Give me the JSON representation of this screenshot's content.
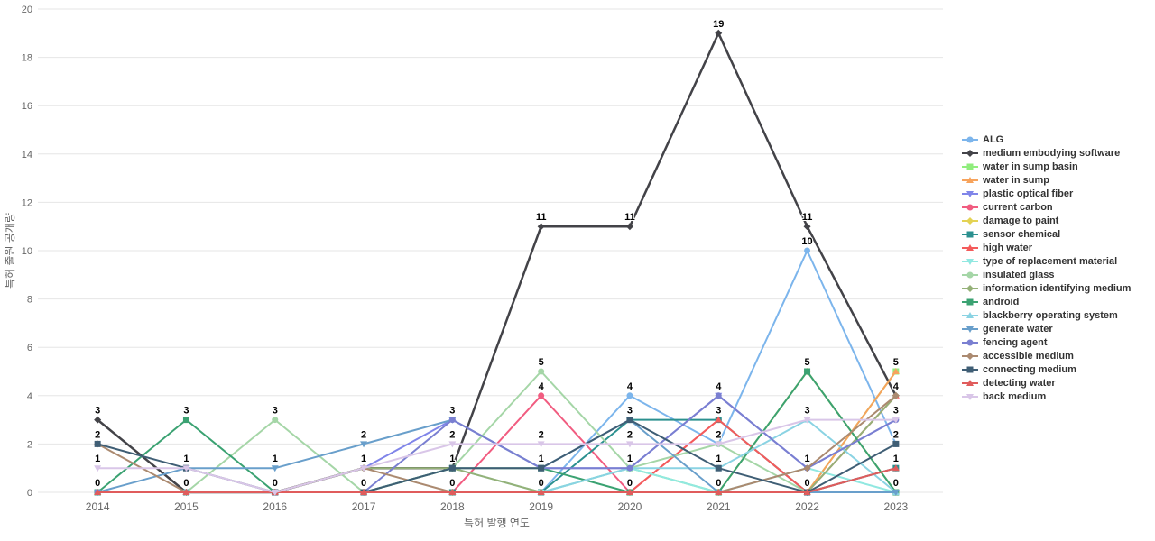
{
  "chart_data": {
    "type": "line",
    "title": "",
    "xlabel": "특허 발행 연도",
    "ylabel": "특허 출원 공개량",
    "x": [
      2014,
      2015,
      2016,
      2017,
      2018,
      2019,
      2020,
      2021,
      2022,
      2023
    ],
    "ylim": [
      0,
      20
    ],
    "ytick_step": 2,
    "grid": true,
    "legend_position": "right",
    "data_labels": true,
    "series": [
      {
        "name": "ALG",
        "slug": "alg",
        "color": "#7cb5ec",
        "marker": "circle",
        "values": [
          0,
          0,
          0,
          0,
          0,
          0,
          4,
          2,
          10,
          2
        ]
      },
      {
        "name": "medium embodying software",
        "slug": "medium-embodying-software",
        "color": "#434348",
        "marker": "diamond",
        "values": [
          3,
          0,
          0,
          1,
          1,
          11,
          11,
          19,
          11,
          4
        ]
      },
      {
        "name": "water in sump basin",
        "slug": "water-in-sump-basin",
        "color": "#90ed7d",
        "marker": "square",
        "values": [
          0,
          0,
          0,
          0,
          0,
          0,
          1,
          0,
          0,
          5
        ]
      },
      {
        "name": "water in sump",
        "slug": "water-in-sump",
        "color": "#f7a35c",
        "marker": "triangle",
        "values": [
          0,
          0,
          0,
          0,
          0,
          0,
          0,
          0,
          0,
          5
        ]
      },
      {
        "name": "plastic optical fiber",
        "slug": "plastic-optical-fiber",
        "color": "#8085e9",
        "marker": "triangle-down",
        "values": [
          0,
          0,
          0,
          1,
          3,
          1,
          1,
          4,
          1,
          3
        ]
      },
      {
        "name": "current carbon",
        "slug": "current-carbon",
        "color": "#f15c80",
        "marker": "circle",
        "values": [
          0,
          0,
          0,
          0,
          0,
          4,
          0,
          3,
          0,
          1
        ]
      },
      {
        "name": "damage to paint",
        "slug": "damage-to-paint",
        "color": "#e4d354",
        "marker": "diamond",
        "values": [
          0,
          0,
          0,
          0,
          0,
          0,
          0,
          0,
          5,
          0
        ]
      },
      {
        "name": "sensor chemical",
        "slug": "sensor-chemical",
        "color": "#2b908f",
        "marker": "square",
        "values": [
          0,
          0,
          0,
          0,
          0,
          0,
          3,
          3,
          0,
          1
        ]
      },
      {
        "name": "high water",
        "slug": "high-water",
        "color": "#f45b5b",
        "marker": "triangle",
        "values": [
          0,
          0,
          0,
          0,
          0,
          0,
          0,
          3,
          0,
          4
        ]
      },
      {
        "name": "type of replacement material",
        "slug": "type-of-replacement-material",
        "color": "#91e8e1",
        "marker": "triangle-down",
        "values": [
          0,
          0,
          0,
          0,
          1,
          0,
          1,
          0,
          1,
          0
        ]
      },
      {
        "name": "insulated glass",
        "slug": "insulated-glass",
        "color": "#a5d6a7",
        "marker": "circle",
        "values": [
          0,
          0,
          3,
          0,
          1,
          5,
          1,
          2,
          0,
          0
        ]
      },
      {
        "name": "information identifying medium",
        "slug": "information-identifying-medium",
        "color": "#95b178",
        "marker": "diamond",
        "values": [
          0,
          0,
          0,
          1,
          1,
          0,
          0,
          0,
          0,
          4
        ]
      },
      {
        "name": "android",
        "slug": "android",
        "color": "#3ba272",
        "marker": "square",
        "values": [
          0,
          3,
          0,
          0,
          1,
          1,
          0,
          0,
          5,
          0
        ]
      },
      {
        "name": "blackberry operating system",
        "slug": "blackberry-operating-system",
        "color": "#8ad3e3",
        "marker": "triangle",
        "values": [
          0,
          0,
          0,
          0,
          0,
          0,
          1,
          1,
          3,
          0
        ]
      },
      {
        "name": "generate water",
        "slug": "generate-water",
        "color": "#699fcb",
        "marker": "triangle-down",
        "values": [
          0,
          1,
          1,
          2,
          3,
          1,
          3,
          0,
          0,
          0
        ]
      },
      {
        "name": "fencing agent",
        "slug": "fencing-agent",
        "color": "#7a7fd1",
        "marker": "circle",
        "values": [
          0,
          0,
          0,
          0,
          3,
          1,
          1,
          4,
          1,
          3
        ]
      },
      {
        "name": "accessible medium",
        "slug": "accessible-medium",
        "color": "#ab8a70",
        "marker": "diamond",
        "values": [
          2,
          0,
          0,
          1,
          0,
          0,
          0,
          0,
          1,
          4
        ]
      },
      {
        "name": "connecting medium",
        "slug": "connecting-medium",
        "color": "#3f5e75",
        "marker": "square",
        "values": [
          2,
          1,
          0,
          0,
          1,
          1,
          3,
          1,
          0,
          2
        ]
      },
      {
        "name": "detecting water",
        "slug": "detecting-water",
        "color": "#e05c5c",
        "marker": "triangle",
        "values": [
          0,
          0,
          0,
          0,
          0,
          0,
          0,
          0,
          0,
          1
        ]
      },
      {
        "name": "back medium",
        "slug": "back-medium",
        "color": "#d9c6e8",
        "marker": "triangle-down",
        "values": [
          1,
          1,
          0,
          1,
          2,
          2,
          2,
          2,
          3,
          3
        ]
      }
    ]
  }
}
